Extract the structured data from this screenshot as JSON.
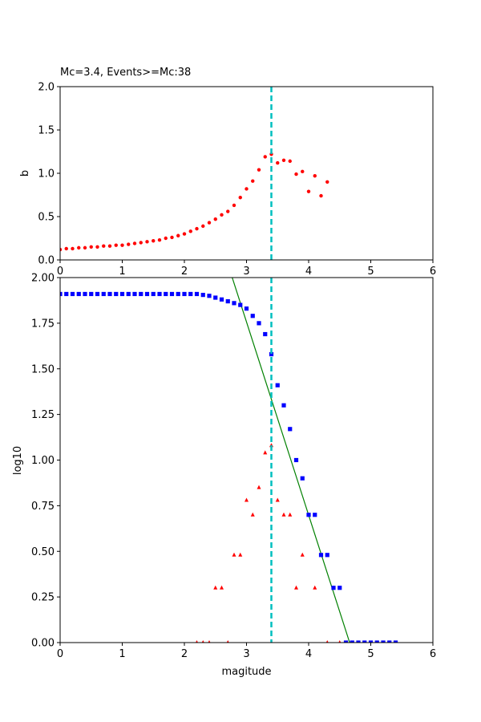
{
  "chart_data": [
    {
      "type": "scatter",
      "title": "Mc=3.4, Events>=Mc:38",
      "xlabel": "",
      "ylabel": "b",
      "xlim": [
        0,
        6
      ],
      "ylim": [
        0,
        2.0
      ],
      "xticks": [
        "0",
        "1",
        "2",
        "3",
        "4",
        "5",
        "6"
      ],
      "yticks": [
        "0.0",
        "0.5",
        "1.0",
        "1.5",
        "2.0"
      ],
      "grid": false,
      "mc_line": {
        "x": 3.4,
        "color": "#00bfbf",
        "style": "dashed"
      },
      "series": [
        {
          "marker": "dot",
          "color": "#ff0000",
          "x": [
            0.0,
            0.1,
            0.2,
            0.3,
            0.4,
            0.5,
            0.6,
            0.7,
            0.8,
            0.9,
            1.0,
            1.1,
            1.2,
            1.3,
            1.4,
            1.5,
            1.6,
            1.7,
            1.8,
            1.9,
            2.0,
            2.1,
            2.2,
            2.3,
            2.4,
            2.5,
            2.6,
            2.7,
            2.8,
            2.9,
            3.0,
            3.1,
            3.2,
            3.3,
            3.4,
            3.5,
            3.6,
            3.7,
            3.8,
            3.9,
            4.0,
            4.1,
            4.2,
            4.3
          ],
          "y": [
            0.12,
            0.13,
            0.13,
            0.14,
            0.14,
            0.15,
            0.15,
            0.16,
            0.16,
            0.17,
            0.17,
            0.18,
            0.19,
            0.2,
            0.21,
            0.22,
            0.23,
            0.25,
            0.26,
            0.28,
            0.3,
            0.33,
            0.36,
            0.39,
            0.43,
            0.47,
            0.52,
            0.56,
            0.63,
            0.72,
            0.82,
            0.91,
            1.04,
            1.19,
            1.22,
            1.12,
            1.15,
            1.14,
            0.99,
            1.02,
            0.79,
            0.97,
            0.74,
            0.9
          ]
        }
      ]
    },
    {
      "type": "scatter",
      "title": "",
      "xlabel": "magitude",
      "ylabel": "log10",
      "xlim": [
        0,
        6
      ],
      "ylim": [
        0,
        2.0
      ],
      "xticks": [
        "0",
        "1",
        "2",
        "3",
        "4",
        "5",
        "6"
      ],
      "yticks": [
        "0.00",
        "0.25",
        "0.50",
        "0.75",
        "1.00",
        "1.25",
        "1.50",
        "1.75",
        "2.00"
      ],
      "grid": false,
      "mc_line": {
        "x": 3.4,
        "color": "#00bfbf",
        "style": "dashed"
      },
      "fit_line": {
        "x": [
          2.77,
          4.66
        ],
        "y": [
          2.0,
          0.0
        ],
        "color": "#008000"
      },
      "series": [
        {
          "marker": "square",
          "color": "#0000ff",
          "x": [
            0.0,
            0.1,
            0.2,
            0.3,
            0.4,
            0.5,
            0.6,
            0.7,
            0.8,
            0.9,
            1.0,
            1.1,
            1.2,
            1.3,
            1.4,
            1.5,
            1.6,
            1.7,
            1.8,
            1.9,
            2.0,
            2.1,
            2.2,
            2.3,
            2.4,
            2.5,
            2.6,
            2.7,
            2.8,
            2.9,
            3.0,
            3.1,
            3.2,
            3.3,
            3.4,
            3.5,
            3.6,
            3.7,
            3.8,
            3.9,
            4.0,
            4.1,
            4.2,
            4.3,
            4.4,
            4.5,
            4.6,
            4.7,
            4.8,
            4.9,
            5.0,
            5.1,
            5.2,
            5.3,
            5.4
          ],
          "y": [
            1.91,
            1.91,
            1.91,
            1.91,
            1.91,
            1.91,
            1.91,
            1.91,
            1.91,
            1.91,
            1.91,
            1.91,
            1.91,
            1.91,
            1.91,
            1.91,
            1.91,
            1.91,
            1.91,
            1.91,
            1.91,
            1.91,
            1.91,
            1.905,
            1.9,
            1.89,
            1.88,
            1.87,
            1.86,
            1.85,
            1.83,
            1.79,
            1.75,
            1.69,
            1.58,
            1.41,
            1.3,
            1.17,
            1.0,
            0.9,
            0.7,
            0.7,
            0.48,
            0.48,
            0.3,
            0.3,
            0.0,
            0.0,
            0.0,
            0.0,
            0.0,
            0.0,
            0.0,
            0.0,
            0.0
          ]
        },
        {
          "marker": "triangle",
          "color": "#ff0000",
          "x": [
            2.2,
            2.3,
            2.4,
            2.5,
            2.6,
            2.7,
            2.8,
            2.9,
            3.0,
            3.1,
            3.2,
            3.3,
            3.4,
            3.5,
            3.6,
            3.7,
            3.8,
            3.9,
            4.1,
            4.3,
            4.5
          ],
          "y": [
            0.0,
            0.0,
            0.0,
            0.3,
            0.3,
            0.0,
            0.48,
            0.48,
            0.78,
            0.7,
            0.85,
            1.04,
            1.08,
            0.78,
            0.7,
            0.7,
            0.3,
            0.48,
            0.3,
            0.0,
            0.0
          ]
        }
      ]
    }
  ]
}
